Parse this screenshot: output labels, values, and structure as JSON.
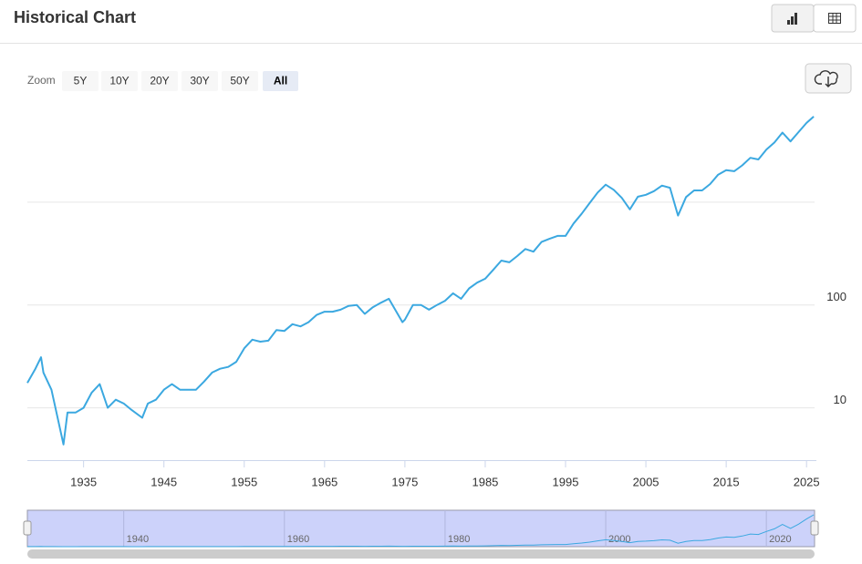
{
  "header": {
    "title": "Historical Chart"
  },
  "zoom": {
    "label": "Zoom",
    "buttons": [
      "5Y",
      "10Y",
      "20Y",
      "30Y",
      "50Y",
      "All"
    ],
    "active": 5
  },
  "chart_data": {
    "type": "line",
    "log_scale": true,
    "grid": true,
    "color": "#3ba8e0",
    "x": [
      1928,
      1929,
      1929.7,
      1930,
      1931,
      1932.5,
      1933,
      1934,
      1935,
      1936,
      1937,
      1938,
      1939,
      1940,
      1941,
      1942.3,
      1943,
      1944,
      1945,
      1946,
      1947,
      1948,
      1949,
      1950,
      1951,
      1952,
      1953,
      1954,
      1955,
      1956,
      1957,
      1958,
      1959,
      1960,
      1961,
      1962,
      1963,
      1964,
      1965,
      1966,
      1967,
      1968,
      1969,
      1970,
      1971,
      1972,
      1973,
      1974.7,
      1975,
      1976,
      1977,
      1978,
      1979,
      1980,
      1981,
      1982,
      1983,
      1984,
      1985,
      1986,
      1987,
      1988,
      1989,
      1990,
      1991,
      1992,
      1993,
      1994,
      1995,
      1996,
      1997,
      1998,
      1999,
      2000,
      2001,
      2002,
      2003,
      2004,
      2005,
      2006,
      2007,
      2008,
      2009,
      2010,
      2011,
      2012,
      2013,
      2014,
      2015,
      2016,
      2017,
      2018,
      2019,
      2020,
      2021,
      2022,
      2023,
      2024,
      2025,
      2025.9
    ],
    "values": [
      17.5,
      24,
      31,
      22,
      15,
      4.4,
      9,
      9,
      10,
      14,
      17,
      10,
      12,
      11,
      9.5,
      8,
      11,
      12,
      15,
      17,
      15,
      15,
      15,
      18,
      22,
      24,
      25,
      28,
      38,
      46,
      44,
      45,
      57,
      56,
      65,
      62,
      68,
      80,
      86,
      86,
      90,
      98,
      100,
      82,
      95,
      105,
      115,
      68,
      72,
      100,
      100,
      90,
      100,
      110,
      130,
      115,
      145,
      165,
      180,
      220,
      270,
      260,
      300,
      350,
      330,
      410,
      440,
      470,
      470,
      620,
      770,
      980,
      1240,
      1480,
      1320,
      1100,
      850,
      1130,
      1180,
      1280,
      1450,
      1380,
      740,
      1120,
      1300,
      1300,
      1500,
      1850,
      2050,
      2000,
      2280,
      2700,
      2600,
      3250,
      3800,
      4750,
      3900,
      4800,
      5900,
      6800
    ],
    "xlim": [
      1928,
      2026
    ],
    "xticks": [
      1935,
      1945,
      1955,
      1965,
      1975,
      1985,
      1995,
      2005,
      2015,
      2025
    ],
    "ylim": [
      3.1,
      9800
    ],
    "yticks": [
      10,
      100
    ],
    "ygrid": [
      10,
      100,
      1000
    ],
    "navigator_xticks": [
      1940,
      1960,
      1980,
      2000,
      2020
    ]
  }
}
